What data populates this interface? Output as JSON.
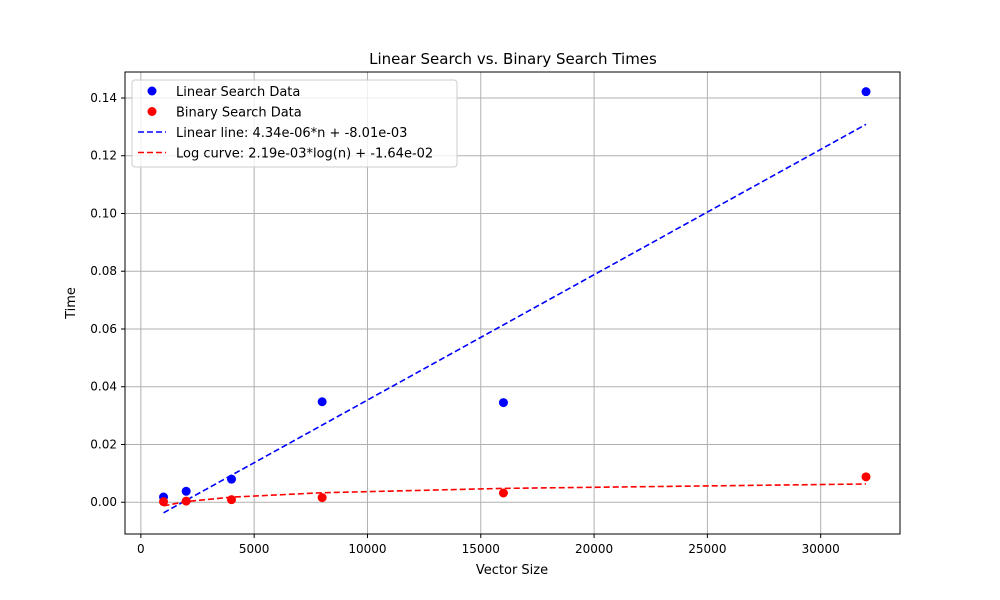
{
  "chart_data": {
    "type": "scatter",
    "title": "Linear Search vs. Binary Search Times",
    "xlabel": "Vector Size",
    "ylabel": "Time",
    "xlim": [
      -700,
      33500
    ],
    "ylim": [
      -0.011,
      0.149
    ],
    "x_ticks": [
      0,
      5000,
      10000,
      15000,
      20000,
      25000,
      30000
    ],
    "y_ticks": [
      0.0,
      0.02,
      0.04,
      0.06,
      0.08,
      0.1,
      0.12,
      0.14
    ],
    "x_tick_labels": [
      "0",
      "5000",
      "10000",
      "15000",
      "20000",
      "25000",
      "30000"
    ],
    "y_tick_labels": [
      "0.00",
      "0.02",
      "0.04",
      "0.06",
      "0.08",
      "0.10",
      "0.12",
      "0.14"
    ],
    "grid": true,
    "legend_position": "top-left",
    "series": [
      {
        "name": "Linear Search Data",
        "kind": "scatter",
        "color": "#0000ff",
        "x": [
          1000,
          2000,
          4000,
          8000,
          16000,
          32000
        ],
        "y": [
          0.0018,
          0.0038,
          0.008,
          0.0348,
          0.0345,
          0.1422
        ]
      },
      {
        "name": "Binary Search Data",
        "kind": "scatter",
        "color": "#ff0000",
        "x": [
          1000,
          2000,
          4000,
          8000,
          16000,
          32000
        ],
        "y": [
          0.0002,
          0.0004,
          0.0009,
          0.0016,
          0.0032,
          0.0088
        ]
      },
      {
        "name": "Linear line: 4.34e-06*n + -8.01e-03",
        "kind": "dashed-line",
        "color": "#0000ff",
        "x": [
          1000,
          32000
        ],
        "y": [
          -0.00367,
          0.13087
        ]
      },
      {
        "name": "Log curve: 2.19e-03*log(n) + -1.64e-02",
        "kind": "dashed-line",
        "color": "#ff0000",
        "x": [
          1000,
          2000,
          4000,
          8000,
          16000,
          32000
        ],
        "y": [
          -0.00127,
          0.00025,
          0.00177,
          0.00329,
          0.0048,
          0.00632
        ]
      }
    ]
  }
}
